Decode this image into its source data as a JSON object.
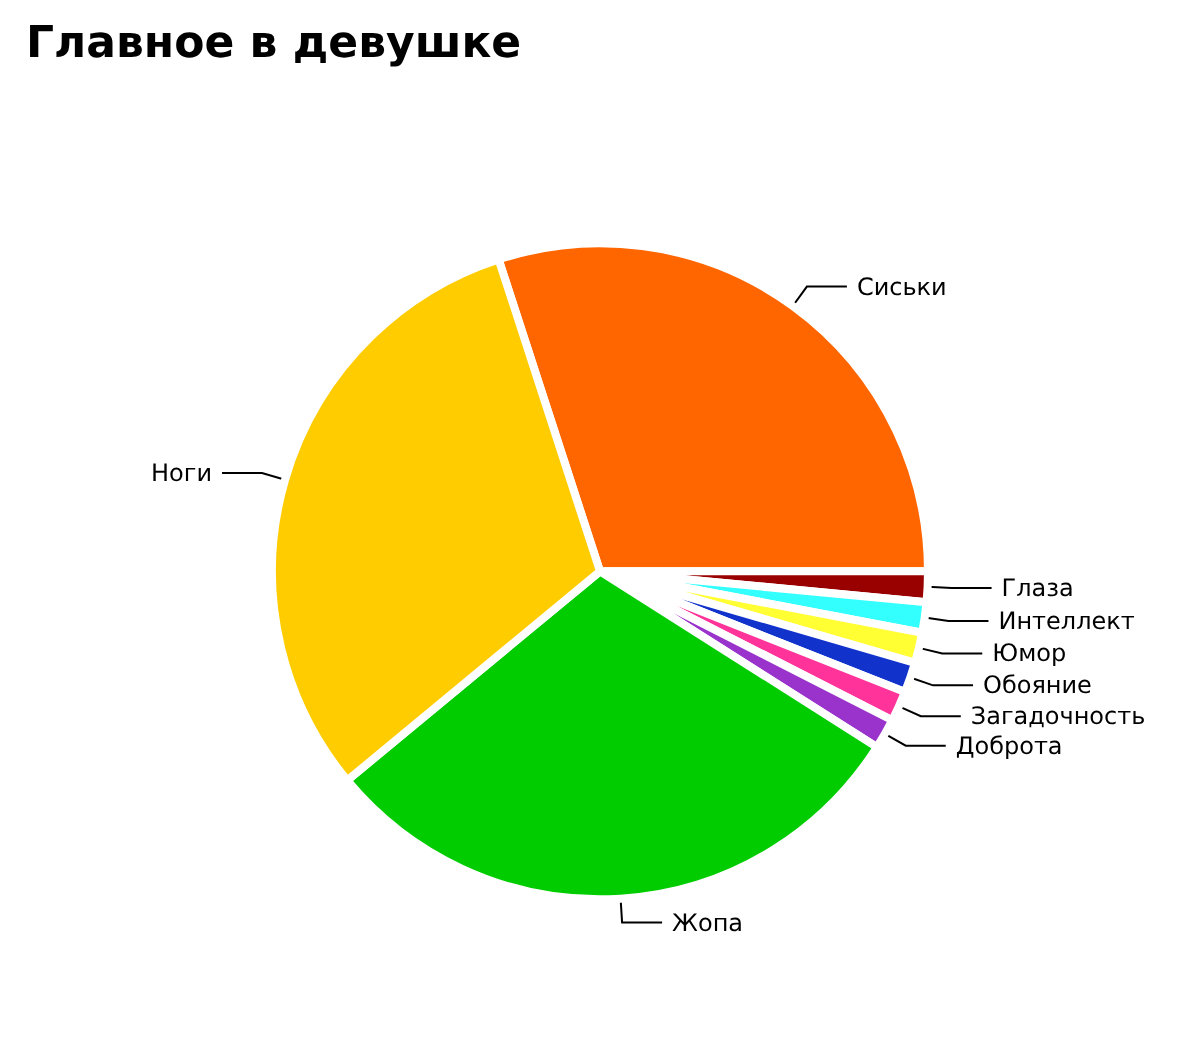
{
  "chart_data": {
    "type": "pie",
    "title": "Главное в девушке",
    "categories": [
      "Сиськи",
      "Глаза",
      "Интеллект",
      "Юмор",
      "Обояние",
      "Загадочность",
      "Доброта",
      "Жопа",
      "Ноги"
    ],
    "values": [
      30,
      1.5,
      1.5,
      1.5,
      1.5,
      1.5,
      1.5,
      30,
      31
    ],
    "colors": [
      "#ff6600",
      "#990000",
      "#33ffff",
      "#ffff33",
      "#1133cc",
      "#ff3399",
      "#9933cc",
      "#00cc00",
      "#ffcc00"
    ],
    "legend": false
  }
}
